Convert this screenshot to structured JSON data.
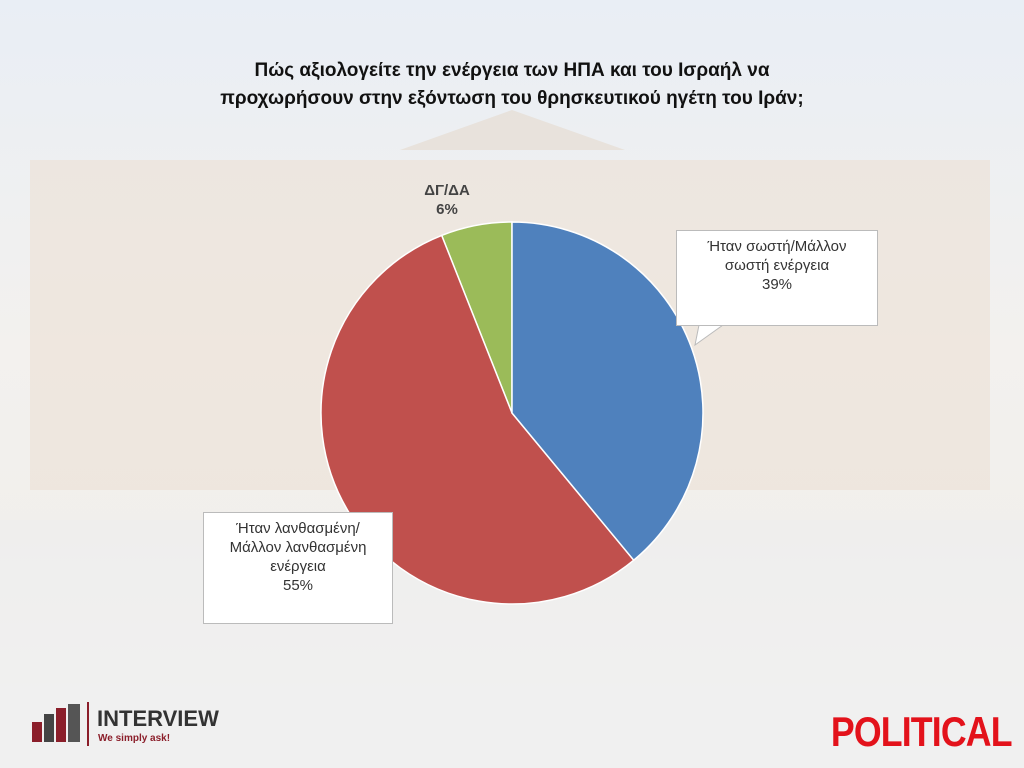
{
  "chart_data": {
    "type": "pie",
    "title": [
      "Πώς αξιολογείτε την ενέργεια των ΗΠΑ και του Ισραήλ να",
      "προχωρήσουν στην εξόντωση του θρησκευτικού ηγέτη του Ιράν;"
    ],
    "categories": [
      "Ήταν σωστή/Μάλλον σωστή ενέργεια",
      "Ήταν λανθασμένη/Μάλλον λανθασμένη ενέργεια",
      "ΔΓ/ΔΑ"
    ],
    "values": [
      39,
      55,
      6
    ],
    "value_labels": [
      "39%",
      "55%",
      "6%"
    ],
    "colors": [
      "#4f81bd",
      "#c0504d",
      "#9bbb59"
    ]
  },
  "logos": {
    "interview": "INTERVIEW",
    "tagline": "We simply ask!",
    "political": "POLITICAL"
  }
}
